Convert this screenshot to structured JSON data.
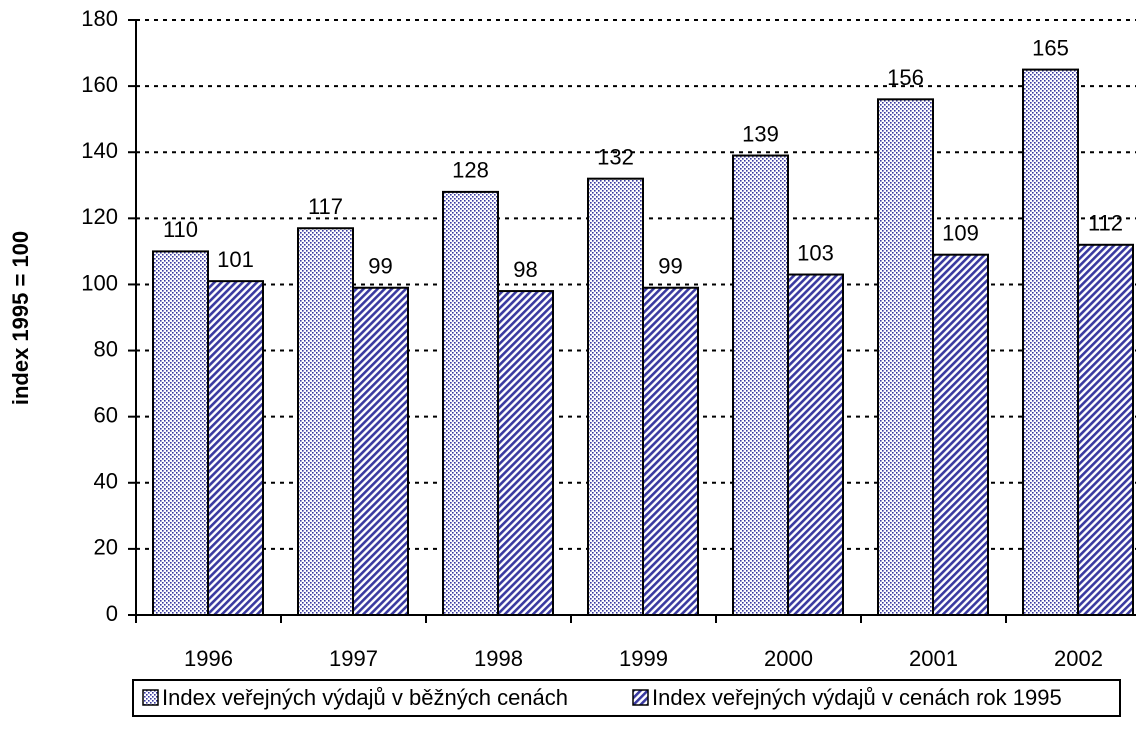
{
  "chart_data": {
    "type": "bar",
    "y_axis_label": "index 1995 = 100",
    "categories": [
      "1996",
      "1997",
      "1998",
      "1999",
      "2000",
      "2001",
      "2002"
    ],
    "series": [
      {
        "name": "Index veřejných výdajů v běžných cenách",
        "color": "#3a3aa0",
        "pattern": "dots",
        "values": [
          110,
          117,
          128,
          132,
          139,
          156,
          165
        ]
      },
      {
        "name": "Index veřejných výdajů v cenách rok 1995",
        "color": "#3a3aa0",
        "pattern": "stripes",
        "values": [
          101,
          99,
          98,
          99,
          103,
          109,
          112
        ]
      }
    ],
    "ylim": [
      0,
      180
    ],
    "yticks": [
      0,
      20,
      40,
      60,
      80,
      100,
      120,
      140,
      160,
      180
    ],
    "grid": true,
    "legend": "bottom"
  }
}
